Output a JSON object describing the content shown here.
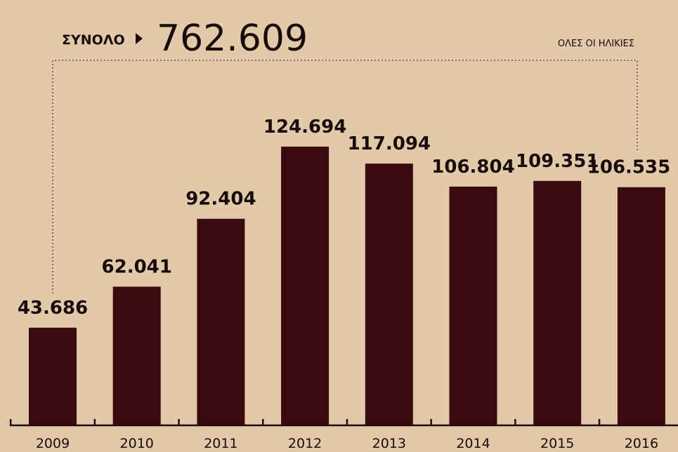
{
  "header": {
    "total_label": "ΣΥΝΟΛΟ",
    "total_value": "762.609",
    "scope_label": "ΟΛΕΣ ΟΙ ΗΛΙΚΙΕΣ"
  },
  "colors": {
    "background": "#e2c9aa",
    "bar": "#3b0a0e",
    "text": "#1a0b0b"
  },
  "chart_data": {
    "type": "bar",
    "title": "",
    "xlabel": "",
    "ylabel": "",
    "categories": [
      "2009",
      "2010",
      "2011",
      "2012",
      "2013",
      "2014",
      "2015",
      "2016"
    ],
    "values": [
      43686,
      62041,
      92404,
      124694,
      117094,
      106804,
      109351,
      106535
    ],
    "value_labels": [
      "43.686",
      "62.041",
      "92.404",
      "124.694",
      "117.094",
      "106.804",
      "109.351",
      "106.535"
    ],
    "ylim": [
      0,
      130000
    ],
    "grid": false
  }
}
